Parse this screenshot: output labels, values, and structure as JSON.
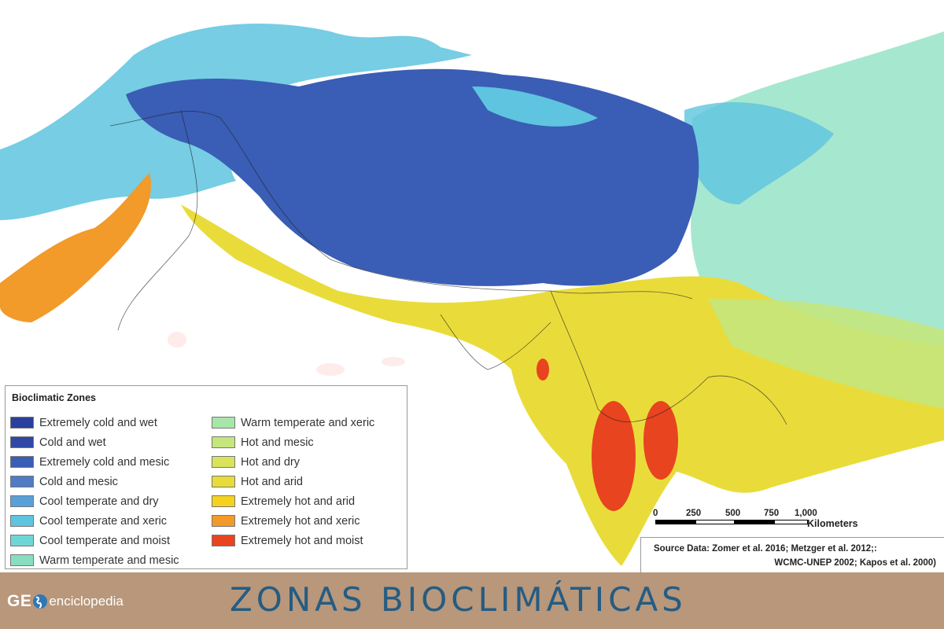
{
  "legend": {
    "title": "Bioclimatic Zones",
    "items": [
      {
        "label": "Extremely cold and wet",
        "color": "#2b3f9c"
      },
      {
        "label": "Cold and wet",
        "color": "#2f48a6"
      },
      {
        "label": "Extremely cold and mesic",
        "color": "#3a5db5"
      },
      {
        "label": "Cold and mesic",
        "color": "#4f7cc4"
      },
      {
        "label": "Cool temperate and dry",
        "color": "#5aa0d8"
      },
      {
        "label": "Cool temperate and xeric",
        "color": "#5ec4df"
      },
      {
        "label": "Cool temperate and moist",
        "color": "#6fd6d6"
      },
      {
        "label": "Warm temperate and mesic",
        "color": "#88dfbf"
      },
      {
        "label": "Warm temperate and xeric",
        "color": "#a7e6a8"
      },
      {
        "label": "Hot and mesic",
        "color": "#c4e67d"
      },
      {
        "label": "Hot and dry",
        "color": "#d9e45a"
      },
      {
        "label": "Hot and arid",
        "color": "#e9dc3a"
      },
      {
        "label": "Extremely hot and arid",
        "color": "#f5d21e"
      },
      {
        "label": "Extremely hot and xeric",
        "color": "#f29a2a"
      },
      {
        "label": "Extremely hot and moist",
        "color": "#e8441f"
      }
    ]
  },
  "scale_bar": {
    "ticks": [
      "0",
      "250",
      "500",
      "750",
      "1,000"
    ],
    "unit": "Kilometers"
  },
  "source": {
    "line1": "Source Data: Zomer et al. 2016; Metzger et al. 2012;:",
    "line2": "WCMC-UNEP 2002; Kapos et al. 2000)"
  },
  "footer": {
    "logo_bold": "GE",
    "logo_rest": "enciclopedia",
    "title": "ZONAS BIOCLIMÁTICAS",
    "background": "#b8977b",
    "title_color": "#255c82"
  }
}
